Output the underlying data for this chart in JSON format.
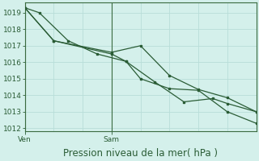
{
  "title": "Pression niveau de la mer( hPa )",
  "background_color": "#d4f0eb",
  "grid_color": "#b8ddd8",
  "line_color": "#2a5c35",
  "spine_color": "#3a6b40",
  "ylim": [
    1011.8,
    1019.6
  ],
  "yticks": [
    1012,
    1013,
    1014,
    1015,
    1016,
    1017,
    1018,
    1019
  ],
  "xlim": [
    0,
    16
  ],
  "ven_x": 0,
  "sam_x": 6,
  "series1_x": [
    0,
    1,
    3,
    5,
    7,
    8,
    10,
    12,
    14,
    16
  ],
  "series1_y": [
    1019.3,
    1019.0,
    1017.3,
    1016.5,
    1016.05,
    1015.0,
    1014.4,
    1014.3,
    1013.0,
    1012.3
  ],
  "series2_x": [
    0,
    2,
    6,
    8,
    10,
    12,
    14,
    16
  ],
  "series2_y": [
    1019.3,
    1017.3,
    1016.6,
    1017.0,
    1015.2,
    1014.35,
    1013.85,
    1013.0
  ],
  "series3_x": [
    0,
    2,
    6,
    7,
    9,
    11,
    13,
    14,
    16
  ],
  "series3_y": [
    1019.3,
    1017.3,
    1016.5,
    1016.05,
    1014.8,
    1013.6,
    1013.8,
    1013.5,
    1013.0
  ],
  "xtick_labels": [
    "Ven",
    "Sam"
  ],
  "xtick_positions": [
    0,
    6
  ],
  "title_fontsize": 8.5,
  "tick_fontsize": 6.5
}
